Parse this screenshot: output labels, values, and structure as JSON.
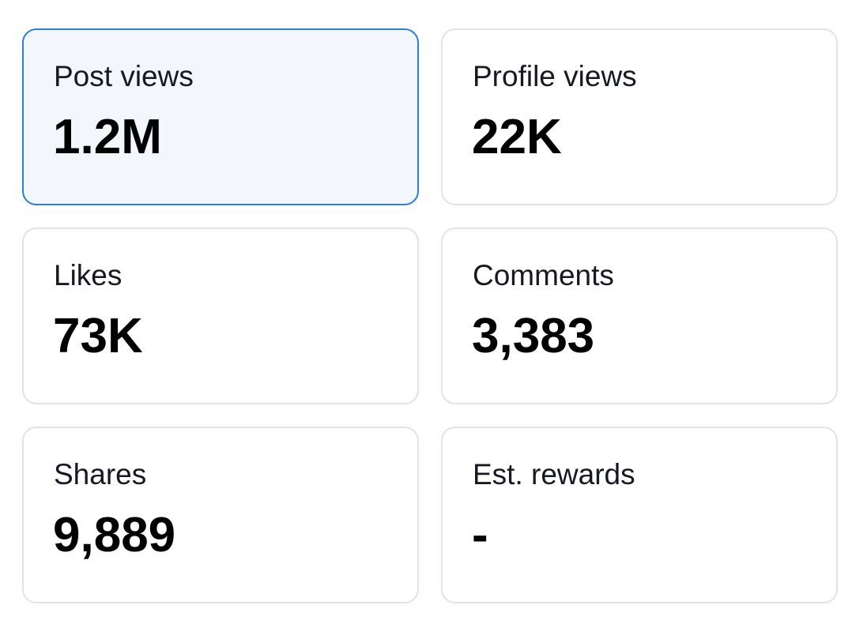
{
  "metrics": [
    {
      "label": "Post views",
      "value": "1.2M"
    },
    {
      "label": "Profile views",
      "value": "22K"
    },
    {
      "label": "Likes",
      "value": "73K"
    },
    {
      "label": "Comments",
      "value": "3,383"
    },
    {
      "label": "Shares",
      "value": "9,889"
    },
    {
      "label": "Est. rewards",
      "value": "-"
    }
  ]
}
